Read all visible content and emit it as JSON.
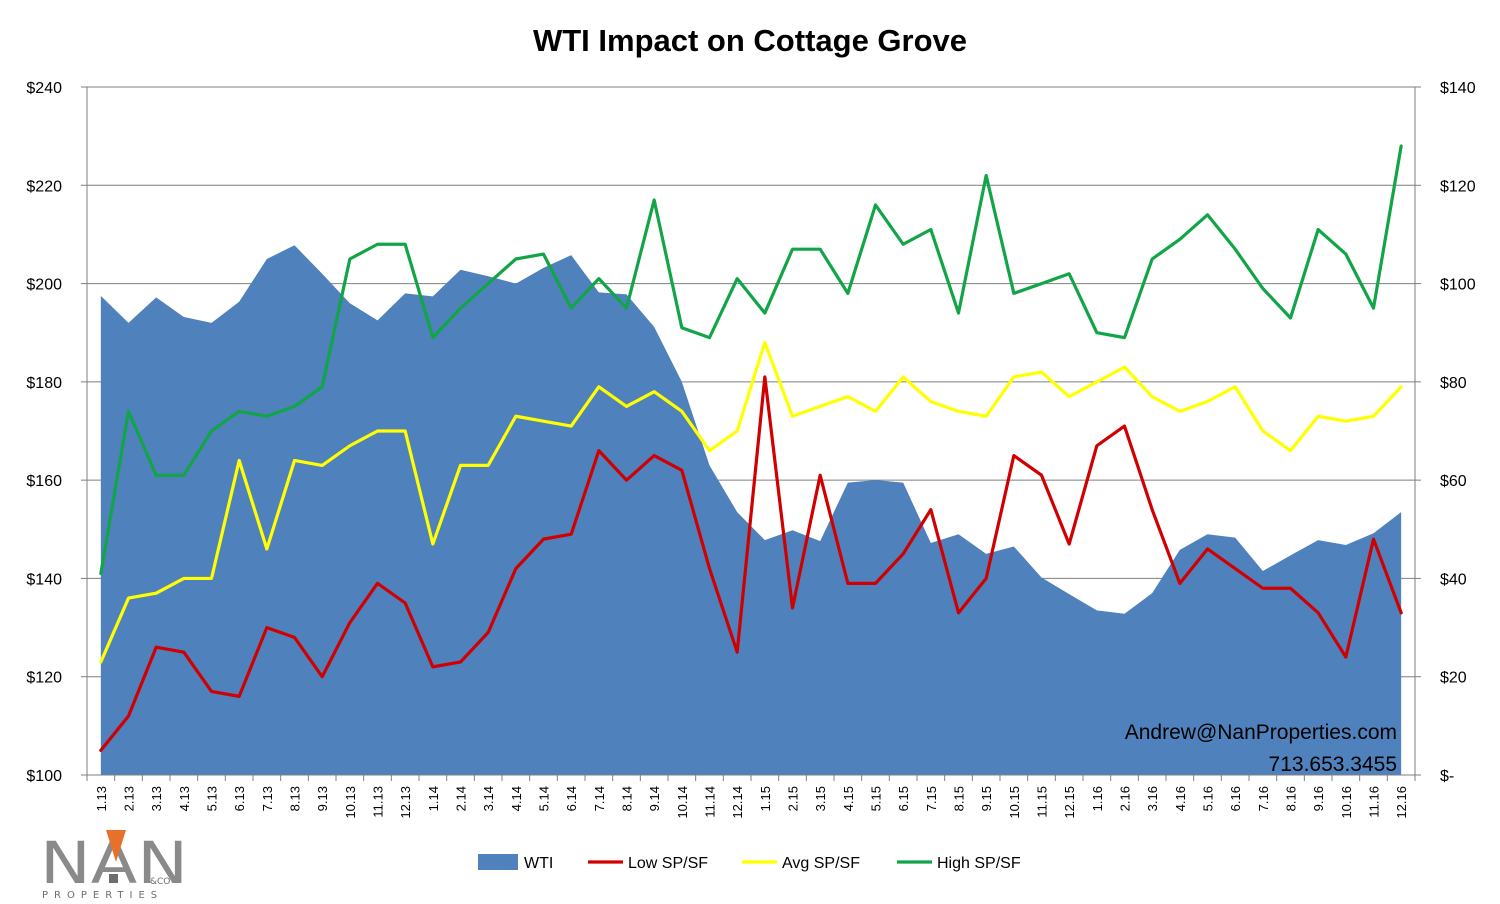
{
  "colors": {
    "wti": "#4f81bd",
    "low": "#d00000",
    "avg": "#ffff00",
    "high": "#12a547",
    "grid": "#7f7f7f",
    "logo_gray": "#8a8a8a",
    "logo_orange": "#e8712a"
  },
  "contact": {
    "email": "Andrew@NanProperties.com",
    "phone": "713.653.3455"
  },
  "logo": {
    "mark": "NAN",
    "suffix": "&CO",
    "tagline": "PROPERTIES"
  },
  "chart_data": {
    "type": "line",
    "title": "WTI Impact on Cottage Grove",
    "categories": [
      "1.13",
      "2.13",
      "3.13",
      "4.13",
      "5.13",
      "6.13",
      "7.13",
      "8.13",
      "9.13",
      "10.13",
      "11.13",
      "12.13",
      "1.14",
      "2.14",
      "3.14",
      "4.14",
      "5.14",
      "6.14",
      "7.14",
      "8.14",
      "9.14",
      "10.14",
      "11.14",
      "12.14",
      "1.15",
      "2.15",
      "3.15",
      "4.15",
      "5.15",
      "6.15",
      "7.15",
      "8.15",
      "9.15",
      "10.15",
      "11.15",
      "12.15",
      "1.16",
      "2.16",
      "3.16",
      "4.16",
      "5.16",
      "6.16",
      "7.16",
      "8.16",
      "9.16",
      "10.16",
      "11.16",
      "12.16"
    ],
    "y_left": {
      "min": 100,
      "max": 240,
      "step": 20,
      "tick_labels": [
        "$100",
        "$120",
        "$140",
        "$160",
        "$180",
        "$200",
        "$220",
        "$240"
      ]
    },
    "y_right": {
      "min": 0,
      "max": 140,
      "step": 20,
      "tick_labels": [
        "$-",
        "$20",
        "$40",
        "$60",
        "$80",
        "$100",
        "$120",
        "$140"
      ]
    },
    "grid": true,
    "legend_position": "bottom",
    "series": [
      {
        "name": "WTI",
        "type": "area",
        "axis": "right",
        "values": [
          97.5,
          92.0,
          97.2,
          93.2,
          92.0,
          96.3,
          105.0,
          107.8,
          102.0,
          96.0,
          92.5,
          98.0,
          97.4,
          102.8,
          101.5,
          100.0,
          103.2,
          105.8,
          98.2,
          97.8,
          91.2,
          80.0,
          63.0,
          53.5,
          47.8,
          49.8,
          47.6,
          59.5,
          60.0,
          59.5,
          47.2,
          49.0,
          45.0,
          46.5,
          40.2,
          36.8,
          33.5,
          32.8,
          37.0,
          45.8,
          49.0,
          48.3,
          41.5,
          44.7,
          47.8,
          46.8,
          49.2,
          53.5
        ]
      },
      {
        "name": "Low SP/SF",
        "type": "line",
        "axis": "left",
        "values": [
          105,
          112,
          126,
          125,
          117,
          116,
          130,
          128,
          120,
          131,
          139,
          135,
          122,
          123,
          129,
          142,
          148,
          149,
          166,
          160,
          165,
          162,
          142,
          125,
          181,
          134,
          161,
          139,
          139,
          145,
          154,
          133,
          140,
          165,
          161,
          147,
          167,
          171,
          154,
          139,
          146,
          142,
          138,
          138,
          133,
          124,
          148,
          133
        ]
      },
      {
        "name": "Avg SP/SF",
        "type": "line",
        "axis": "left",
        "values": [
          123,
          136,
          137,
          140,
          140,
          164,
          146,
          164,
          163,
          167,
          170,
          170,
          147,
          163,
          163,
          173,
          172,
          171,
          179,
          175,
          178,
          174,
          166,
          170,
          188,
          173,
          175,
          177,
          174,
          181,
          176,
          174,
          173,
          181,
          182,
          177,
          180,
          183,
          177,
          174,
          176,
          179,
          170,
          166,
          173,
          172,
          173,
          179
        ]
      },
      {
        "name": "High SP/SF",
        "type": "line",
        "axis": "left",
        "values": [
          141,
          174,
          161,
          161,
          170,
          174,
          173,
          175,
          179,
          205,
          208,
          208,
          189,
          195,
          200,
          205,
          206,
          195,
          201,
          195,
          217,
          191,
          189,
          201,
          194,
          207,
          207,
          198,
          216,
          208,
          211,
          194,
          222,
          198,
          200,
          202,
          190,
          189,
          205,
          209,
          214,
          207,
          199,
          193,
          211,
          206,
          195,
          228
        ]
      }
    ]
  }
}
